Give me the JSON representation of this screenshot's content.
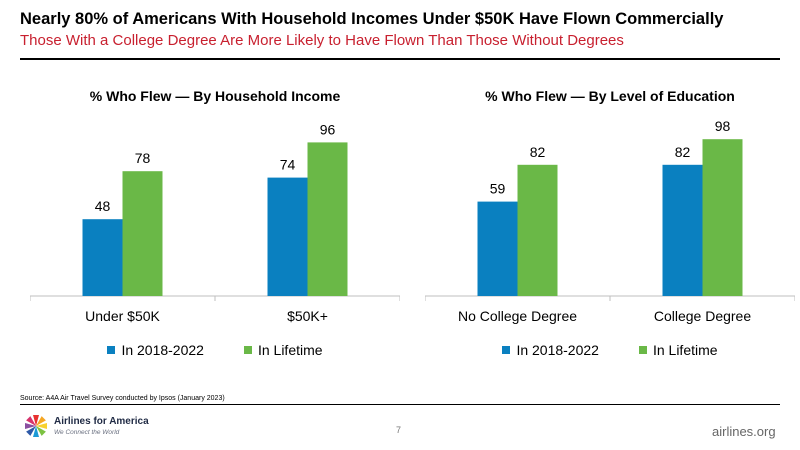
{
  "header": {
    "title": "Nearly 80% of Americans With Household Incomes Under $50K Have Flown Commercially",
    "subtitle": "Those With a College Degree Are More Likely to Have Flown Than Those Without Degrees"
  },
  "colors": {
    "series_1": "#0a80c0",
    "series_2": "#6ab847",
    "axis": "#bfbfbf",
    "subtitle": "#c8202f"
  },
  "chart_data": [
    {
      "type": "bar",
      "title": "% Who Flew — By Household Income",
      "categories": [
        "Under $50K",
        "$50K+"
      ],
      "series": [
        {
          "name": "In 2018-2022",
          "values": [
            48,
            74
          ]
        },
        {
          "name": "In Lifetime",
          "values": [
            78,
            96
          ]
        }
      ],
      "ylim": [
        0,
        100
      ],
      "grid": false,
      "legend": "bottom",
      "data_labels": true
    },
    {
      "type": "bar",
      "title": "% Who Flew — By Level of Education",
      "categories": [
        "No College Degree",
        "College Degree"
      ],
      "series": [
        {
          "name": "In 2018-2022",
          "values": [
            59,
            82
          ]
        },
        {
          "name": "In Lifetime",
          "values": [
            82,
            98
          ]
        }
      ],
      "ylim": [
        0,
        100
      ],
      "grid": false,
      "legend": "bottom",
      "data_labels": true
    }
  ],
  "footer": {
    "source": "Source: A4A Air Travel Survey conducted by Ipsos (January 2023)",
    "page_number": "7",
    "website": "airlines.org",
    "logo_name": "Airlines for America",
    "logo_tagline": "We Connect the World"
  }
}
